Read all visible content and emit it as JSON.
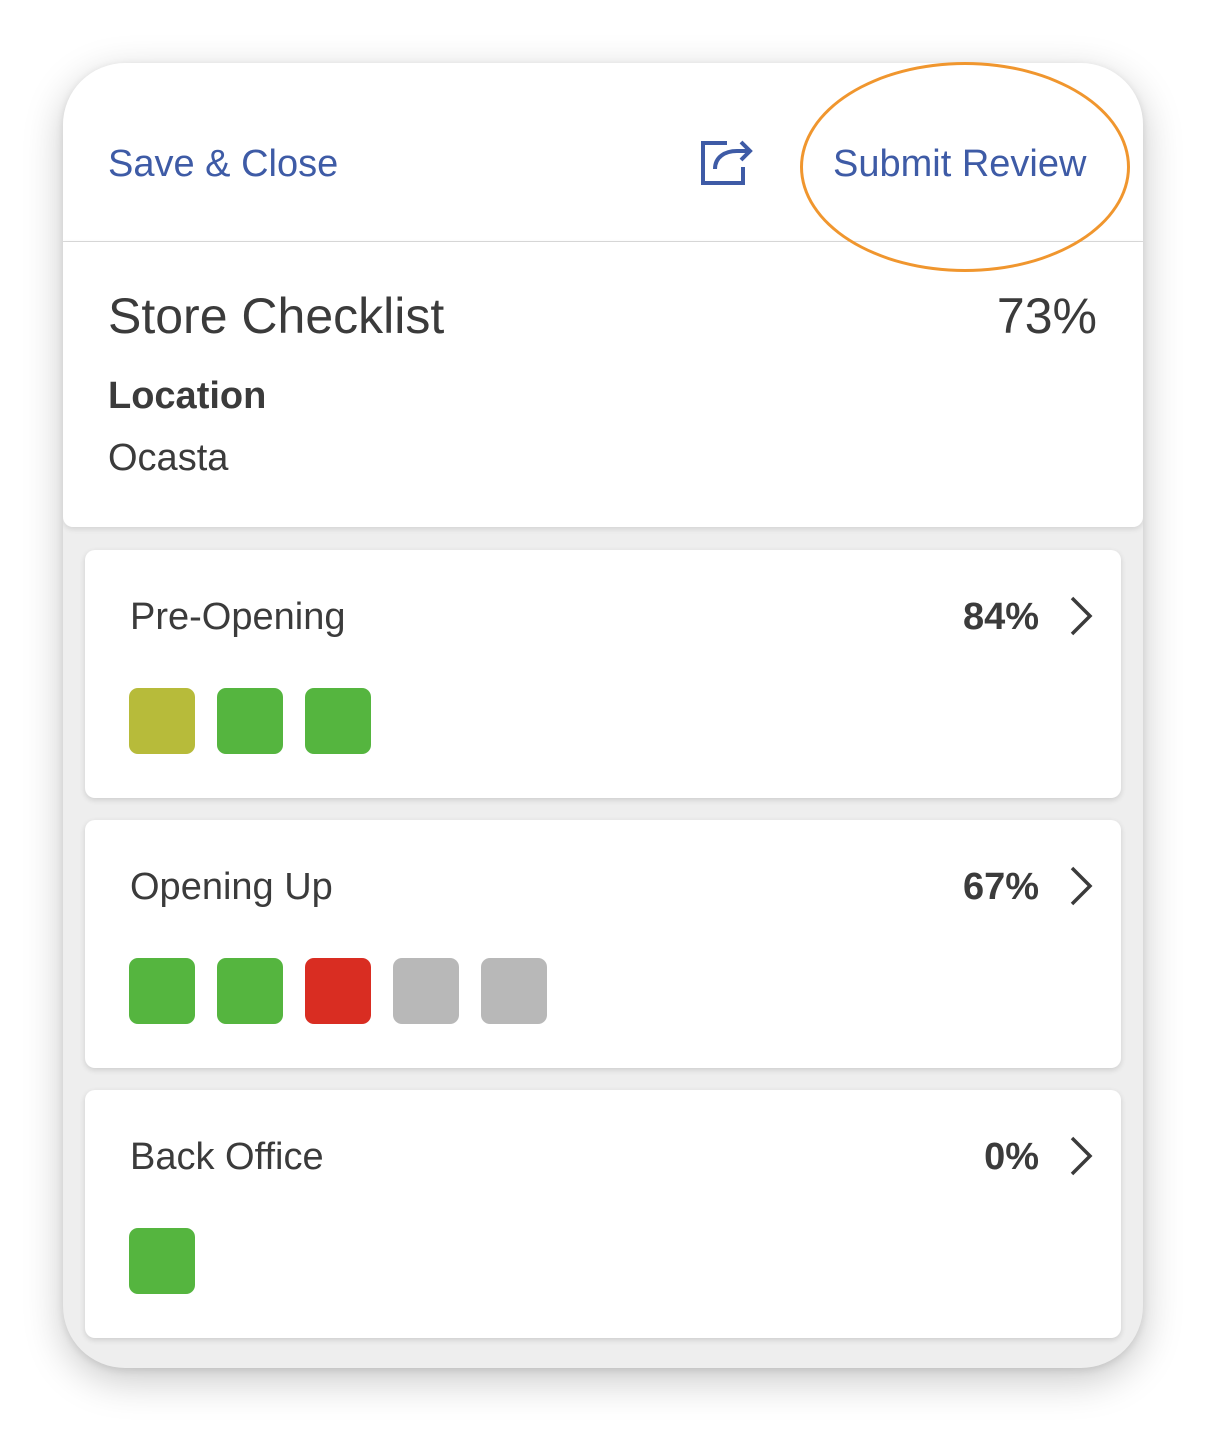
{
  "topbar": {
    "save_close_label": "Save & Close",
    "share_icon": "share-icon",
    "submit_review_label": "Submit Review"
  },
  "checklist": {
    "title": "Store Checklist",
    "percent": "73%",
    "location_label": "Location",
    "location_value": "Ocasta"
  },
  "colors": {
    "link": "#3e5ba6",
    "highlight": "#f0962e",
    "olive": "#b7bb3a",
    "green": "#55b53f",
    "red": "#d92d22",
    "grey": "#b8b8b8"
  },
  "sections": [
    {
      "name": "Pre-Opening",
      "percent": "84%",
      "status": [
        "olive",
        "green",
        "green"
      ]
    },
    {
      "name": "Opening Up",
      "percent": "67%",
      "status": [
        "green",
        "green",
        "red",
        "grey",
        "grey"
      ]
    },
    {
      "name": "Back Office",
      "percent": "0%",
      "status": [
        "green"
      ]
    }
  ]
}
